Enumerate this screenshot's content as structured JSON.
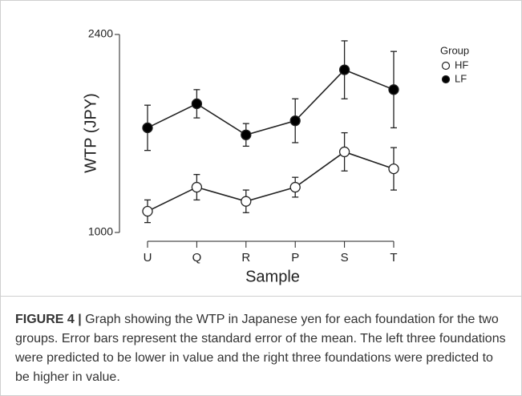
{
  "chart_data": {
    "type": "line",
    "x_label": "Sample",
    "y_label": "WTP (JPY)",
    "categories": [
      "U",
      "Q",
      "R",
      "P",
      "S",
      "T"
    ],
    "ylim": [
      1000,
      2400
    ],
    "yticks": [
      1000,
      2400
    ],
    "legend_title": "Group",
    "legend_position": "upper right",
    "series": [
      {
        "name": "HF",
        "color": "#ffffff",
        "values": [
          1150,
          1320,
          1220,
          1320,
          1570,
          1450
        ],
        "errors": [
          80,
          90,
          80,
          70,
          135,
          150
        ]
      },
      {
        "name": "LF",
        "color": "#000000",
        "values": [
          1740,
          1910,
          1690,
          1790,
          2150,
          2010
        ],
        "errors": [
          160,
          100,
          80,
          155,
          205,
          270
        ]
      }
    ]
  },
  "caption": {
    "label": "FIGURE 4 |",
    "text": "Graph showing the WTP in Japanese yen for each foundation for the two groups. Error bars represent the standard error of the mean. The left three foundations were predicted to be lower in value and the right three foundations were predicted to be higher in value."
  }
}
